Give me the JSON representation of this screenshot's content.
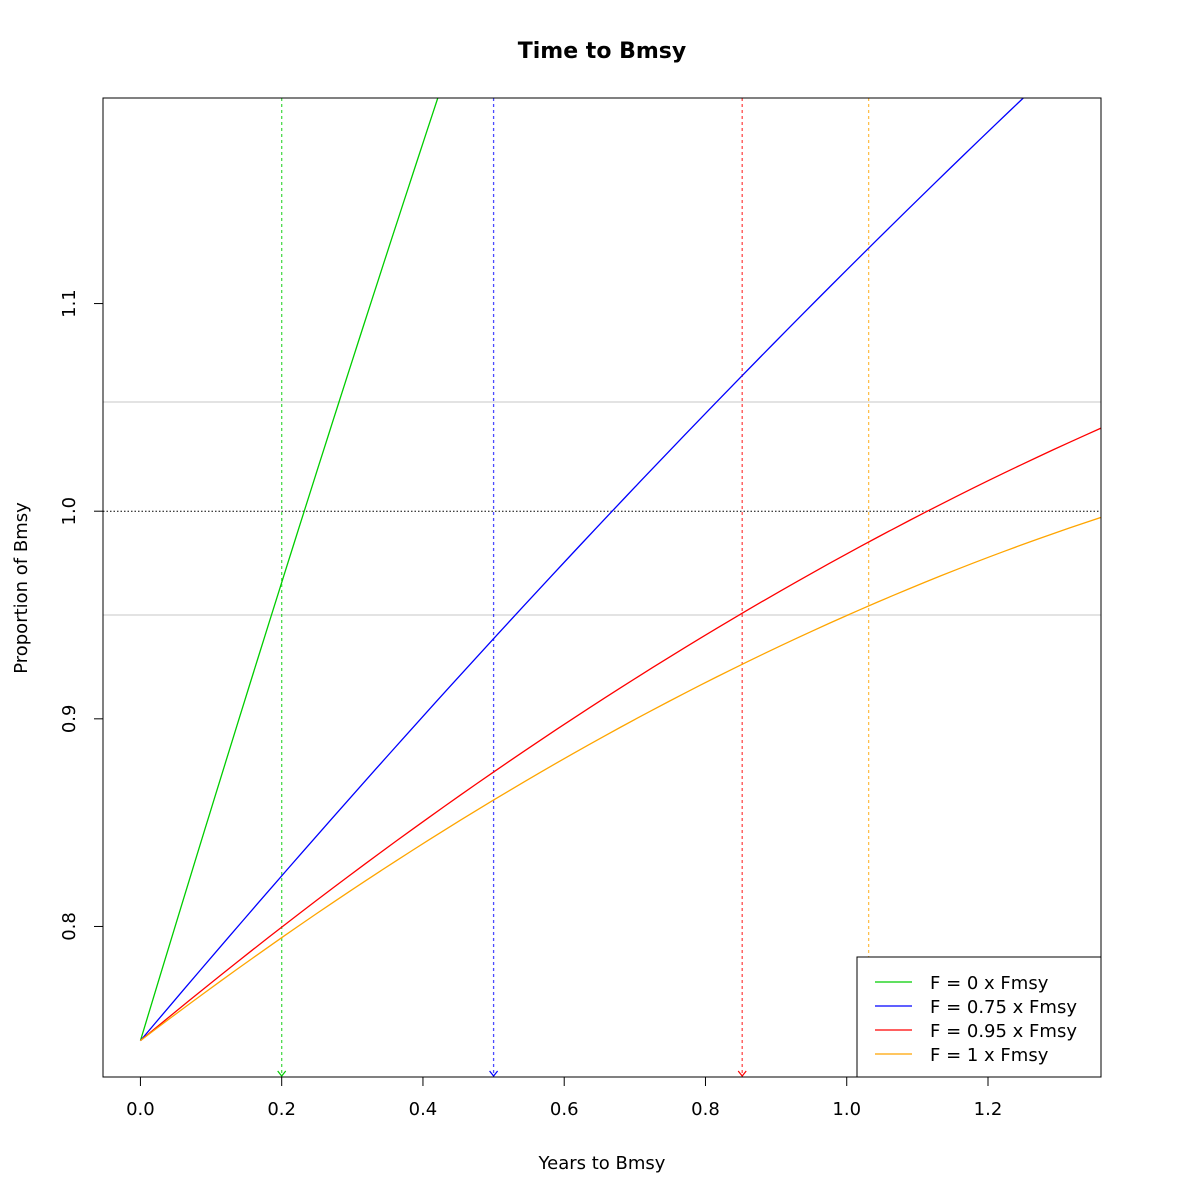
{
  "chart_data": {
    "type": "line",
    "title": "Time to Bmsy",
    "xlabel": "Years to Bmsy",
    "ylabel": "Proportion of Bmsy",
    "xlim": [
      -0.053,
      1.36
    ],
    "ylim": [
      0.7275,
      1.199
    ],
    "x_ticks": [
      "0.0",
      "0.2",
      "0.4",
      "0.6",
      "0.8",
      "1.0",
      "1.2"
    ],
    "x_tick_values": [
      0.0,
      0.2,
      0.4,
      0.6,
      0.8,
      1.0,
      1.2
    ],
    "y_ticks": [
      "0.8",
      "0.9",
      "1.0",
      "1.1"
    ],
    "y_tick_values": [
      0.8,
      0.9,
      1.0,
      1.1
    ],
    "reference_lines": {
      "target": 1.0,
      "band": [
        0.95,
        1.0526
      ]
    },
    "series": [
      {
        "name": "F = 0 x Fmsy",
        "color": "#00CD00",
        "x0": 0.0,
        "y0": 0.745,
        "x1": 0.421,
        "y1": 1.199,
        "curvature": 0.02,
        "vline": 0.2
      },
      {
        "name": "F = 0.75 x Fmsy",
        "color": "#0000FF",
        "x0": 0.0,
        "y0": 0.745,
        "x1": 1.25,
        "y1": 1.199,
        "curvature": 0.05,
        "vline": 0.5
      },
      {
        "name": "F = 0.95 x Fmsy",
        "color": "#FF0000",
        "x0": 0.0,
        "y0": 0.745,
        "x1": 1.36,
        "y1": 1.04,
        "curvature": 0.09,
        "vline": 0.852
      },
      {
        "name": "F = 1 x Fmsy",
        "color": "#FFA500",
        "x0": 0.0,
        "y0": 0.745,
        "x1": 1.36,
        "y1": 0.997,
        "curvature": 0.1,
        "vline": 1.031
      }
    ],
    "legend": {
      "position": "bottom-right",
      "entries": [
        "F = 0 x Fmsy",
        "F = 0.75 x Fmsy",
        "F = 0.95 x Fmsy",
        "F = 1 x Fmsy"
      ]
    }
  }
}
